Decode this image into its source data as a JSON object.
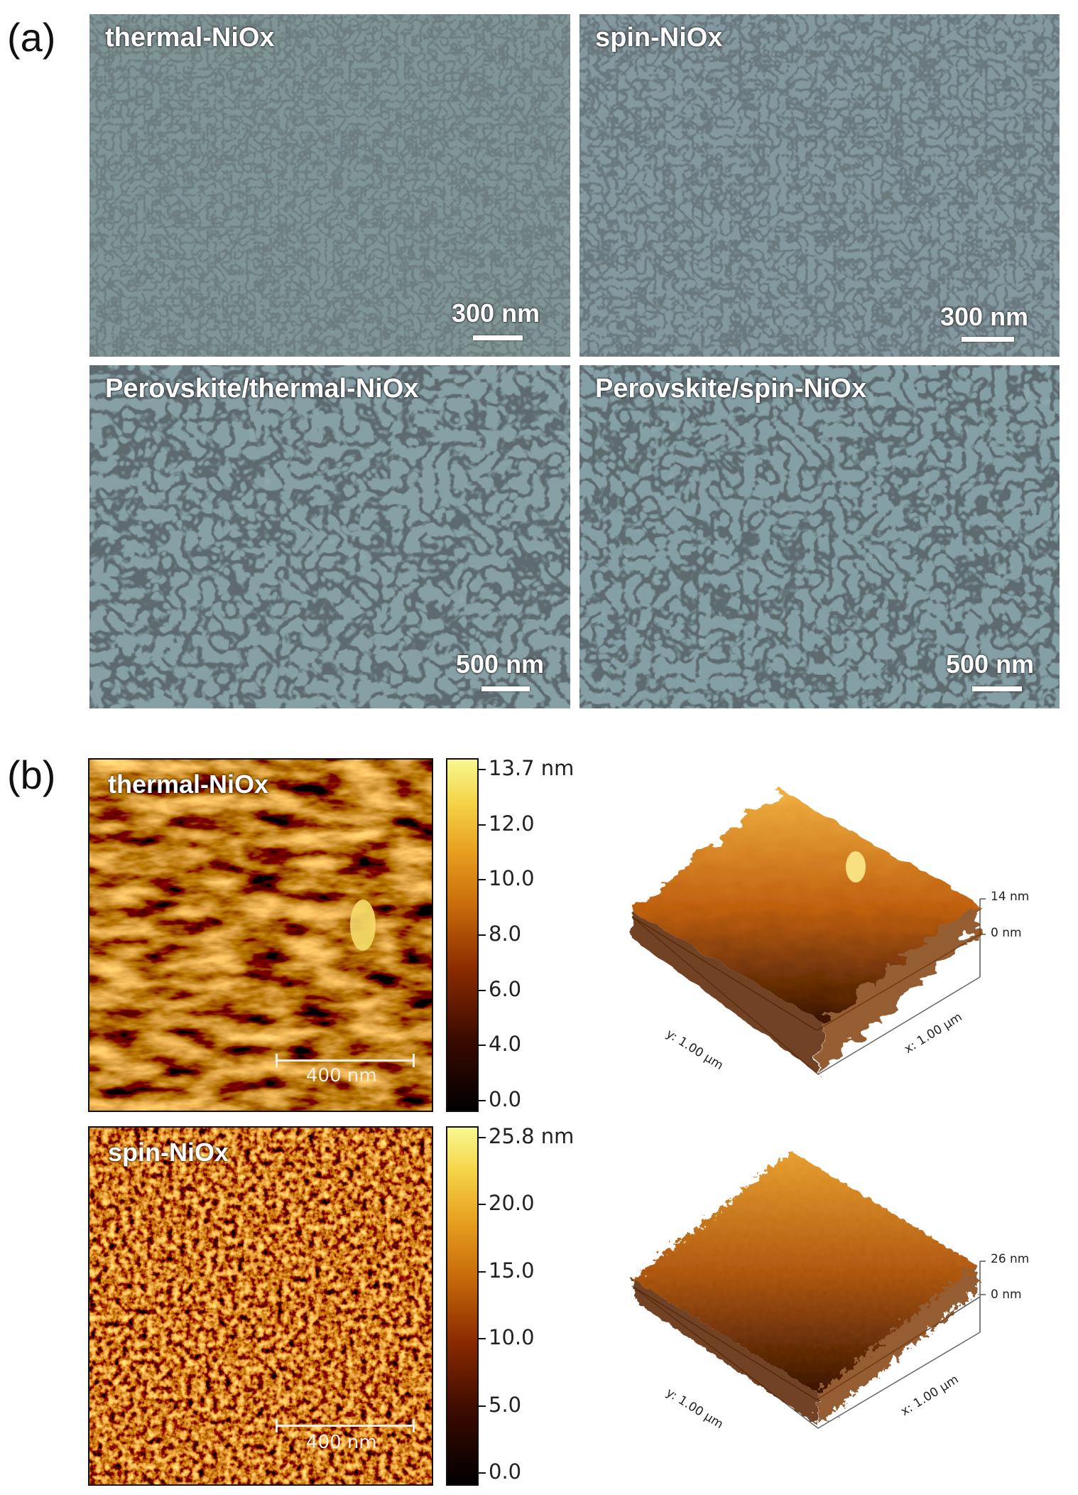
{
  "panel_a": {
    "label": "(a)",
    "images": [
      {
        "title": "thermal-NiOx",
        "scale": "300 nm"
      },
      {
        "title": "spin-NiOx",
        "scale": "300 nm"
      },
      {
        "title": "Perovskite/thermal-NiOx",
        "scale": "500 nm"
      },
      {
        "title": "Perovskite/spin-NiOx",
        "scale": "500 nm"
      }
    ]
  },
  "panel_b": {
    "label": "(b)",
    "maps": [
      {
        "title": "thermal-NiOx",
        "scale": "400 nm",
        "colorbar": [
          "13.7 nm",
          "12.0",
          "10.0",
          "8.0",
          "6.0",
          "4.0",
          "0.0"
        ],
        "surface": {
          "z_max": "14 nm",
          "z_min": "0 nm",
          "y_axis": "y: 1.00 µm",
          "x_axis": "x: 1.00 µm"
        }
      },
      {
        "title": "spin-NiOx",
        "scale": "400 nm",
        "colorbar": [
          "25.8 nm",
          "20.0",
          "15.0",
          "10.0",
          "5.0",
          "0.0"
        ],
        "surface": {
          "z_max": "26 nm",
          "z_min": "0 nm",
          "y_axis": "y: 1.00 µm",
          "x_axis": "x: 1.00 µm"
        }
      }
    ]
  }
}
